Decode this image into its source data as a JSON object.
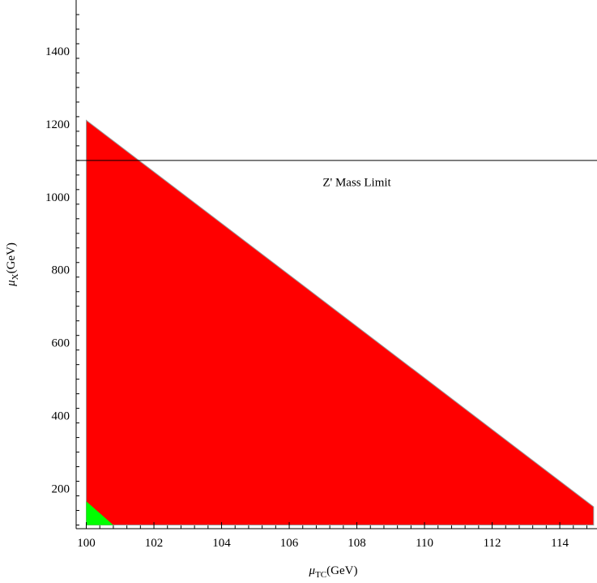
{
  "chart_data": {
    "type": "area",
    "title": "",
    "xlabel": {
      "main": "μ",
      "sub": "TC",
      "unit": "(GeV)"
    },
    "ylabel": {
      "main": "μ",
      "sub": "X",
      "unit": "(GeV)"
    },
    "xlim": [
      99.7,
      115.1
    ],
    "ylim": [
      90,
      1540
    ],
    "xticks": [
      100,
      102,
      104,
      106,
      108,
      110,
      112,
      114
    ],
    "yticks": [
      200,
      400,
      600,
      800,
      1000,
      1200,
      1400
    ],
    "grid": false,
    "regions": [
      {
        "color": "#ff0000",
        "points": [
          [
            100,
            100
          ],
          [
            100,
            1210
          ],
          [
            115,
            150
          ],
          [
            115,
            100
          ]
        ]
      },
      {
        "color": "#00ff00",
        "points": [
          [
            100,
            100
          ],
          [
            100,
            165
          ],
          [
            100.8,
            100
          ]
        ]
      }
    ],
    "hlines": [
      {
        "y": 1100,
        "label": "Z' Mass Limit",
        "label_x": 108,
        "label_y": 1030
      }
    ]
  }
}
